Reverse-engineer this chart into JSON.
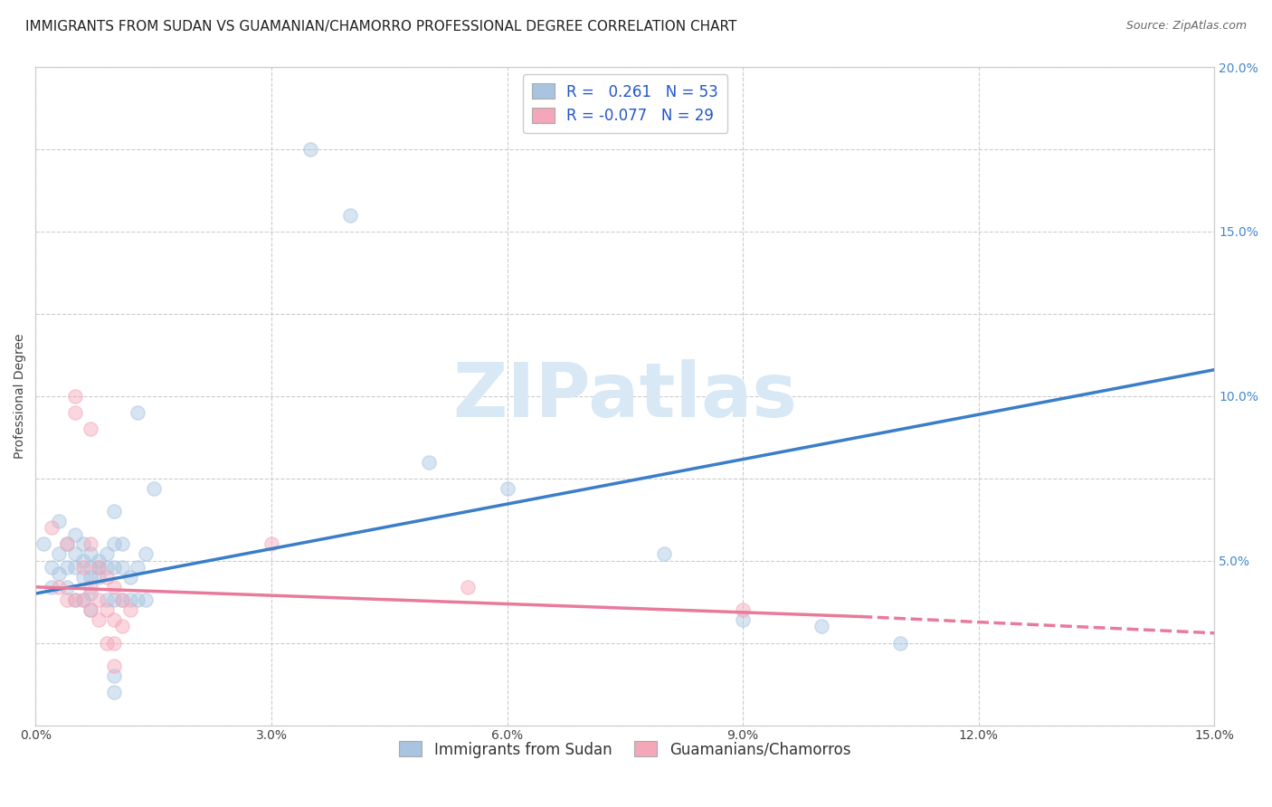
{
  "title": "IMMIGRANTS FROM SUDAN VS GUAMANIAN/CHAMORRO PROFESSIONAL DEGREE CORRELATION CHART",
  "source": "Source: ZipAtlas.com",
  "xlabel": "",
  "ylabel": "Professional Degree",
  "watermark": "ZIPatlas",
  "xlim": [
    0.0,
    0.15
  ],
  "ylim": [
    0.0,
    0.2
  ],
  "xticks": [
    0.0,
    0.03,
    0.06,
    0.09,
    0.12,
    0.15
  ],
  "yticks": [
    0.0,
    0.025,
    0.05,
    0.075,
    0.1,
    0.125,
    0.15,
    0.175,
    0.2
  ],
  "xtick_labels": [
    "0.0%",
    "3.0%",
    "6.0%",
    "9.0%",
    "12.0%",
    "15.0%"
  ],
  "left_ytick_labels": [
    "",
    "",
    "",
    "",
    "",
    "",
    "",
    "",
    ""
  ],
  "right_ytick_labels": [
    "",
    "",
    "5.0%",
    "",
    "10.0%",
    "",
    "15.0%",
    "",
    "20.0%"
  ],
  "blue_R": 0.261,
  "blue_N": 53,
  "pink_R": -0.077,
  "pink_N": 29,
  "blue_color": "#a8c4e0",
  "pink_color": "#f4a7b9",
  "blue_line_color": "#3a7dc9",
  "pink_line_color": "#e87a9a",
  "blue_scatter": [
    [
      0.001,
      0.055
    ],
    [
      0.002,
      0.048
    ],
    [
      0.002,
      0.042
    ],
    [
      0.003,
      0.062
    ],
    [
      0.003,
      0.052
    ],
    [
      0.003,
      0.046
    ],
    [
      0.004,
      0.055
    ],
    [
      0.004,
      0.048
    ],
    [
      0.004,
      0.042
    ],
    [
      0.005,
      0.058
    ],
    [
      0.005,
      0.052
    ],
    [
      0.005,
      0.048
    ],
    [
      0.005,
      0.038
    ],
    [
      0.006,
      0.055
    ],
    [
      0.006,
      0.05
    ],
    [
      0.006,
      0.045
    ],
    [
      0.006,
      0.038
    ],
    [
      0.007,
      0.052
    ],
    [
      0.007,
      0.048
    ],
    [
      0.007,
      0.045
    ],
    [
      0.007,
      0.04
    ],
    [
      0.007,
      0.035
    ],
    [
      0.008,
      0.05
    ],
    [
      0.008,
      0.048
    ],
    [
      0.008,
      0.045
    ],
    [
      0.009,
      0.052
    ],
    [
      0.009,
      0.048
    ],
    [
      0.009,
      0.038
    ],
    [
      0.01,
      0.065
    ],
    [
      0.01,
      0.055
    ],
    [
      0.01,
      0.048
    ],
    [
      0.01,
      0.038
    ],
    [
      0.01,
      0.015
    ],
    [
      0.01,
      0.01
    ],
    [
      0.011,
      0.055
    ],
    [
      0.011,
      0.048
    ],
    [
      0.011,
      0.038
    ],
    [
      0.012,
      0.045
    ],
    [
      0.012,
      0.038
    ],
    [
      0.013,
      0.095
    ],
    [
      0.013,
      0.048
    ],
    [
      0.013,
      0.038
    ],
    [
      0.014,
      0.052
    ],
    [
      0.014,
      0.038
    ],
    [
      0.015,
      0.072
    ],
    [
      0.035,
      0.175
    ],
    [
      0.04,
      0.155
    ],
    [
      0.05,
      0.08
    ],
    [
      0.06,
      0.072
    ],
    [
      0.08,
      0.052
    ],
    [
      0.09,
      0.032
    ],
    [
      0.1,
      0.03
    ],
    [
      0.11,
      0.025
    ]
  ],
  "pink_scatter": [
    [
      0.002,
      0.06
    ],
    [
      0.003,
      0.042
    ],
    [
      0.004,
      0.055
    ],
    [
      0.004,
      0.038
    ],
    [
      0.005,
      0.1
    ],
    [
      0.005,
      0.095
    ],
    [
      0.005,
      0.038
    ],
    [
      0.006,
      0.048
    ],
    [
      0.006,
      0.038
    ],
    [
      0.007,
      0.09
    ],
    [
      0.007,
      0.055
    ],
    [
      0.007,
      0.042
    ],
    [
      0.007,
      0.035
    ],
    [
      0.008,
      0.048
    ],
    [
      0.008,
      0.038
    ],
    [
      0.008,
      0.032
    ],
    [
      0.009,
      0.045
    ],
    [
      0.009,
      0.035
    ],
    [
      0.009,
      0.025
    ],
    [
      0.01,
      0.042
    ],
    [
      0.01,
      0.032
    ],
    [
      0.01,
      0.025
    ],
    [
      0.01,
      0.018
    ],
    [
      0.011,
      0.038
    ],
    [
      0.011,
      0.03
    ],
    [
      0.012,
      0.035
    ],
    [
      0.03,
      0.055
    ],
    [
      0.055,
      0.042
    ],
    [
      0.09,
      0.035
    ]
  ],
  "blue_trendline": [
    [
      0.0,
      0.04
    ],
    [
      0.15,
      0.108
    ]
  ],
  "pink_trendline_solid": [
    [
      0.0,
      0.042
    ],
    [
      0.105,
      0.033
    ]
  ],
  "pink_trendline_dash": [
    [
      0.105,
      0.033
    ],
    [
      0.15,
      0.028
    ]
  ],
  "legend_labels": [
    "Immigrants from Sudan",
    "Guamanians/Chamorros"
  ],
  "title_fontsize": 11,
  "axis_label_fontsize": 10,
  "tick_fontsize": 10,
  "legend_fontsize": 12,
  "watermark_fontsize": 60,
  "watermark_color": "#d8e8f5",
  "background_color": "#ffffff",
  "grid_color": "#cccccc",
  "grid_style": "--",
  "scatter_size": 120,
  "scatter_alpha": 0.45,
  "scatter_edgewidth": 1.2
}
